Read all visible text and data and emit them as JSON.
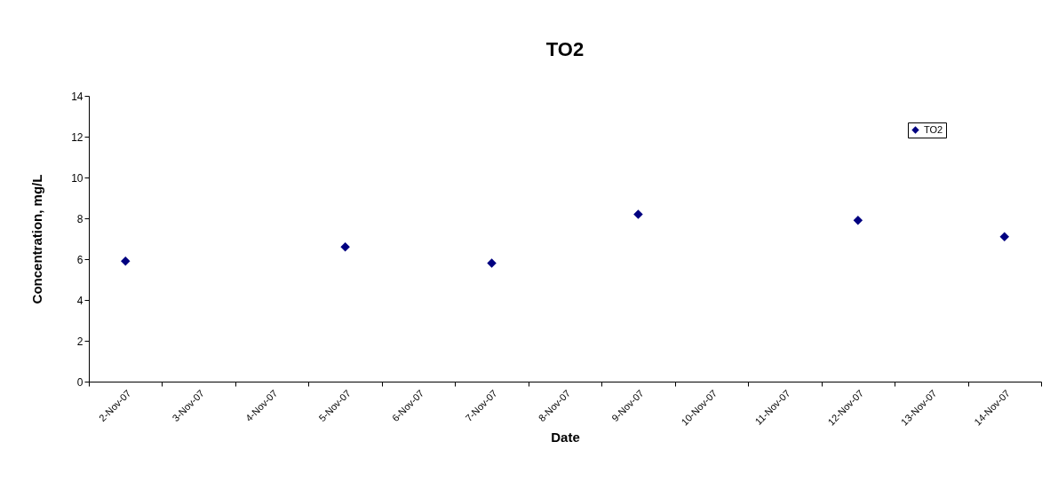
{
  "chart_data": {
    "type": "scatter",
    "title": "TO2",
    "xlabel": "Date",
    "ylabel": "Concentration, mg/L",
    "categories": [
      "2-Nov-07",
      "3-Nov-07",
      "4-Nov-07",
      "5-Nov-07",
      "6-Nov-07",
      "7-Nov-07",
      "8-Nov-07",
      "9-Nov-07",
      "10-Nov-07",
      "11-Nov-07",
      "12-Nov-07",
      "13-Nov-07",
      "14-Nov-07"
    ],
    "series": [
      {
        "name": "TO2",
        "color": "#000080",
        "values": [
          5.9,
          null,
          null,
          6.6,
          null,
          5.8,
          null,
          8.2,
          null,
          null,
          7.9,
          null,
          7.1
        ]
      }
    ],
    "ylim": [
      0,
      14
    ],
    "yticks": [
      0,
      2,
      4,
      6,
      8,
      10,
      12,
      14
    ],
    "grid": false,
    "legend": "top right",
    "marker": "diamond"
  }
}
